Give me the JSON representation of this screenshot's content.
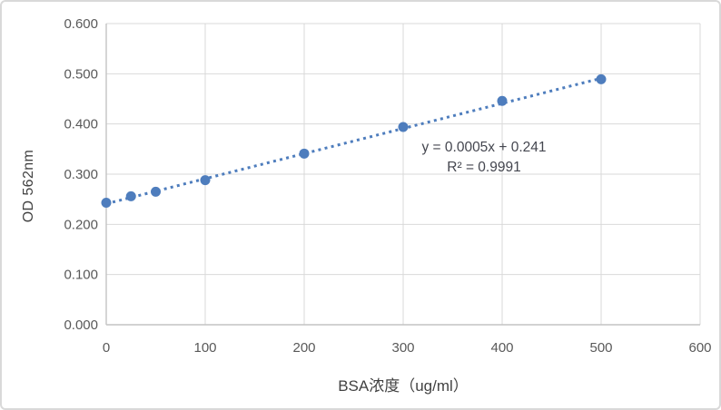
{
  "chart_data": {
    "type": "scatter",
    "title": "",
    "xlabel": "BSA浓度（ug/ml）",
    "ylabel": "OD 562nm",
    "xlim": [
      0,
      600
    ],
    "ylim": [
      0,
      0.6
    ],
    "grid": true,
    "x_ticks": [
      "0",
      "100",
      "200",
      "300",
      "400",
      "500",
      "600"
    ],
    "y_ticks": [
      "0.000",
      "0.100",
      "0.200",
      "0.300",
      "0.400",
      "0.500",
      "0.600"
    ],
    "points": [
      [
        0,
        0.243
      ],
      [
        25,
        0.256
      ],
      [
        50,
        0.265
      ],
      [
        100,
        0.288
      ],
      [
        200,
        0.341
      ],
      [
        300,
        0.394
      ],
      [
        400,
        0.446
      ],
      [
        500,
        0.489
      ]
    ],
    "trendline": {
      "style": "dotted",
      "slope": 0.0005,
      "intercept": 0.241,
      "x_start": 0,
      "x_end": 500
    },
    "annotation": {
      "equation": "y = 0.0005x + 0.241",
      "r_squared": "R² = 0.9991"
    },
    "colors": {
      "series": "#4e7dbd",
      "gridline": "#d9d9d9",
      "axis": "#c3c3c3",
      "tick_text": "#595959",
      "title_text": "#424242",
      "border": "#d9d9d9",
      "background": "#ffffff"
    }
  }
}
